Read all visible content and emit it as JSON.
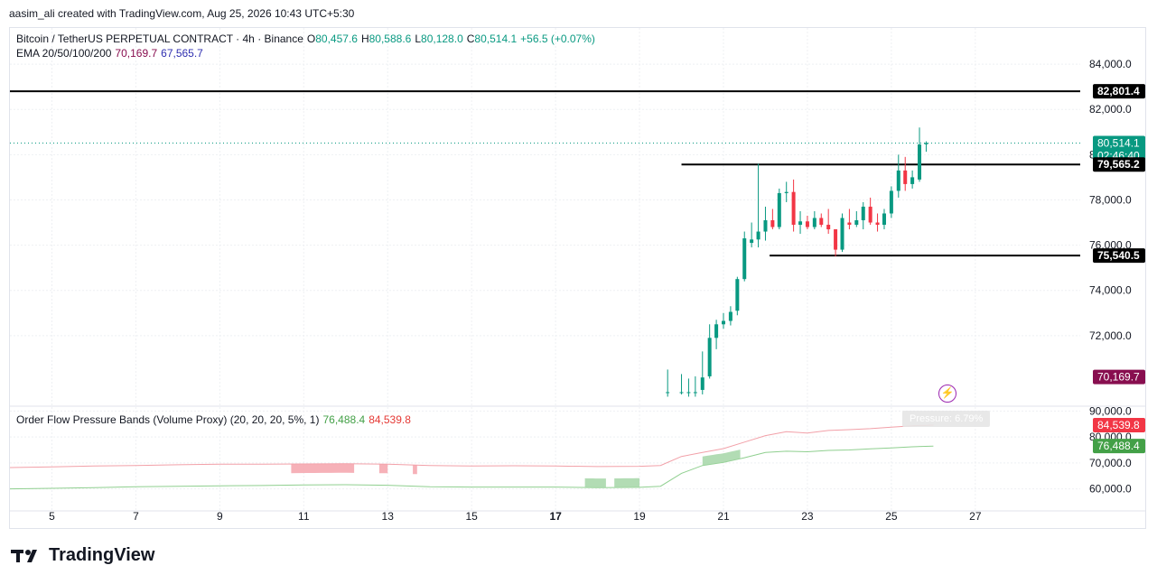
{
  "header": {
    "created_line": "aasim_ali created with TradingView.com, Aug 25, 2026 10:43 UTC+5:30"
  },
  "legend": {
    "symbol": "Bitcoin / TetherUS PERPETUAL CONTRACT · 4h · Binance",
    "o_label": "O",
    "o_value": "80,457.6",
    "h_label": "H",
    "h_value": "80,588.6",
    "l_label": "L",
    "l_value": "80,128.0",
    "c_label": "C",
    "c_value": "80,514.1",
    "change": "+56.5 (+0.07%)",
    "ema_label": "EMA 20/50/100/200",
    "ema_v1": "70,169.7",
    "ema_v2": "67,565.7"
  },
  "indicator": {
    "label": "Order Flow Pressure Bands (Volume Proxy) (20, 20, 20, 5%, 1)",
    "v1": "76,488.4",
    "v2": "84,539.8",
    "pressure_label": "Pressure: 6.79%"
  },
  "brand": {
    "name": "TradingView"
  },
  "colors": {
    "up": "#089981",
    "down": "#f23645",
    "upper_band": "#f2a0a8",
    "lower_band": "#8fcf8f",
    "ema": "#880e4f"
  },
  "chart_data": {
    "type": "candlestick",
    "timeframe": "4h",
    "x_ticks": [
      "5",
      "7",
      "9",
      "11",
      "13",
      "15",
      "17",
      "19",
      "21",
      "23",
      "25",
      "27"
    ],
    "x_range": [
      4,
      29.5
    ],
    "price_axis": {
      "ticks": [
        "84,000.0",
        "82,000.0",
        "80,000.0",
        "78,000.0",
        "76,000.0",
        "74,000.0",
        "72,000.0"
      ],
      "tick_values": [
        84000,
        82000,
        80000,
        78000,
        76000,
        74000,
        72000
      ],
      "range": [
        69000,
        85600
      ]
    },
    "price_labels": [
      {
        "value": 82801.4,
        "text": "82,801.4",
        "style": "black"
      },
      {
        "value": 80514.1,
        "text": "80,514.1",
        "style": "teal",
        "sub": "02:46:40"
      },
      {
        "value": 79565.2,
        "text": "79,565.2",
        "style": "black"
      },
      {
        "value": 75540.5,
        "text": "75,540.5",
        "style": "black"
      },
      {
        "value": 70169.7,
        "text": "70,169.7",
        "style": "ema"
      }
    ],
    "horizontal_lines": [
      {
        "value": 82801.4,
        "from": 4,
        "to": 29.5
      },
      {
        "value": 79565.2,
        "from": 20.0,
        "to": 29.5
      },
      {
        "value": 75540.5,
        "from": 22.1,
        "to": 29.5
      }
    ],
    "last_price_line": 80514.1,
    "candles": [
      {
        "d": 19.67,
        "o": 69500,
        "h": 70500,
        "l": 69300,
        "c": 69500
      },
      {
        "d": 20.0,
        "o": 69500,
        "h": 70300,
        "l": 69400,
        "c": 69500
      },
      {
        "d": 20.17,
        "o": 69500,
        "h": 70100,
        "l": 69300,
        "c": 69500
      },
      {
        "d": 20.33,
        "o": 69500,
        "h": 70200,
        "l": 69300,
        "c": 69500
      },
      {
        "d": 20.5,
        "o": 69600,
        "h": 71300,
        "l": 69400,
        "c": 70150
      },
      {
        "d": 20.67,
        "o": 70200,
        "h": 72500,
        "l": 70100,
        "c": 71900
      },
      {
        "d": 20.83,
        "o": 71900,
        "h": 72700,
        "l": 71400,
        "c": 72500
      },
      {
        "d": 21.0,
        "o": 72500,
        "h": 73000,
        "l": 72300,
        "c": 72650
      },
      {
        "d": 21.17,
        "o": 72650,
        "h": 73300,
        "l": 72450,
        "c": 73050
      },
      {
        "d": 21.33,
        "o": 73100,
        "h": 74600,
        "l": 72900,
        "c": 74500
      },
      {
        "d": 21.5,
        "o": 74500,
        "h": 76600,
        "l": 74400,
        "c": 76300
      },
      {
        "d": 21.67,
        "o": 76100,
        "h": 77000,
        "l": 75900,
        "c": 76250
      },
      {
        "d": 21.83,
        "o": 76250,
        "h": 79600,
        "l": 75900,
        "c": 76600
      },
      {
        "d": 22.0,
        "o": 76600,
        "h": 77700,
        "l": 76200,
        "c": 77100
      },
      {
        "d": 22.17,
        "o": 77100,
        "h": 77600,
        "l": 76700,
        "c": 76800
      },
      {
        "d": 22.33,
        "o": 76800,
        "h": 78500,
        "l": 76700,
        "c": 78300
      },
      {
        "d": 22.5,
        "o": 78300,
        "h": 78800,
        "l": 77900,
        "c": 78350
      },
      {
        "d": 22.67,
        "o": 78350,
        "h": 78900,
        "l": 76600,
        "c": 76900
      },
      {
        "d": 22.83,
        "o": 76900,
        "h": 77500,
        "l": 76500,
        "c": 77050
      },
      {
        "d": 23.0,
        "o": 77050,
        "h": 77300,
        "l": 76700,
        "c": 76800
      },
      {
        "d": 23.17,
        "o": 76800,
        "h": 77500,
        "l": 76700,
        "c": 77200
      },
      {
        "d": 23.33,
        "o": 77200,
        "h": 77400,
        "l": 76800,
        "c": 76900
      },
      {
        "d": 23.5,
        "o": 76900,
        "h": 77600,
        "l": 76500,
        "c": 76700
      },
      {
        "d": 23.67,
        "o": 76700,
        "h": 76700,
        "l": 75500,
        "c": 75800
      },
      {
        "d": 23.83,
        "o": 75800,
        "h": 77400,
        "l": 75700,
        "c": 77200
      },
      {
        "d": 24.0,
        "o": 77000,
        "h": 77600,
        "l": 76700,
        "c": 76900
      },
      {
        "d": 24.17,
        "o": 76900,
        "h": 77500,
        "l": 76800,
        "c": 77100
      },
      {
        "d": 24.33,
        "o": 77100,
        "h": 77900,
        "l": 76700,
        "c": 77700
      },
      {
        "d": 24.5,
        "o": 77700,
        "h": 78100,
        "l": 76900,
        "c": 77000
      },
      {
        "d": 24.67,
        "o": 77000,
        "h": 77400,
        "l": 76600,
        "c": 76900
      },
      {
        "d": 24.83,
        "o": 76900,
        "h": 77600,
        "l": 76700,
        "c": 77400
      },
      {
        "d": 25.0,
        "o": 77400,
        "h": 78600,
        "l": 77200,
        "c": 78400
      },
      {
        "d": 25.17,
        "o": 78400,
        "h": 80000,
        "l": 78100,
        "c": 79300
      },
      {
        "d": 25.33,
        "o": 79300,
        "h": 79900,
        "l": 78400,
        "c": 78700
      },
      {
        "d": 25.5,
        "o": 78700,
        "h": 79300,
        "l": 78500,
        "c": 79000
      },
      {
        "d": 25.67,
        "o": 78900,
        "h": 81200,
        "l": 78800,
        "c": 80450
      },
      {
        "d": 25.83,
        "o": 80457.6,
        "h": 80588.6,
        "l": 80128.0,
        "c": 80514.1
      }
    ],
    "indicator_pane": {
      "ticks": [
        "90,000.0",
        "80,000.0",
        "70,000.0",
        "60,000.0"
      ],
      "tick_values": [
        90000,
        80000,
        70000,
        60000
      ],
      "range": [
        55000,
        91500
      ],
      "labels": [
        {
          "value": 84539.8,
          "text": "84,539.8",
          "style": "red"
        },
        {
          "value": 76488.4,
          "text": "76,488.4",
          "style": "green"
        }
      ],
      "upper_band": [
        [
          4,
          68200
        ],
        [
          5,
          68500
        ],
        [
          6,
          68800
        ],
        [
          7,
          69000
        ],
        [
          8,
          69300
        ],
        [
          9,
          69500
        ],
        [
          10,
          69500
        ],
        [
          11,
          69600
        ],
        [
          12,
          69700
        ],
        [
          13,
          69500
        ],
        [
          14,
          69000
        ],
        [
          15,
          68800
        ],
        [
          16,
          68900
        ],
        [
          17,
          68800
        ],
        [
          18,
          68600
        ],
        [
          19,
          68700
        ],
        [
          19.5,
          69000
        ],
        [
          20,
          72500
        ],
        [
          20.5,
          74000
        ],
        [
          21,
          75500
        ],
        [
          21.5,
          78000
        ],
        [
          22,
          80500
        ],
        [
          22.5,
          82000
        ],
        [
          23,
          81500
        ],
        [
          23.5,
          82500
        ],
        [
          24,
          82800
        ],
        [
          24.5,
          83200
        ],
        [
          25,
          83800
        ],
        [
          25.5,
          84300
        ],
        [
          26,
          84539.8
        ]
      ],
      "lower_band": [
        [
          4,
          60000
        ],
        [
          5,
          60200
        ],
        [
          6,
          60500
        ],
        [
          7,
          60800
        ],
        [
          8,
          61000
        ],
        [
          9,
          61200
        ],
        [
          10,
          61300
        ],
        [
          11,
          61500
        ],
        [
          12,
          61600
        ],
        [
          13,
          61400
        ],
        [
          14,
          60800
        ],
        [
          15,
          60700
        ],
        [
          16,
          60700
        ],
        [
          17,
          60700
        ],
        [
          18,
          60500
        ],
        [
          19,
          60600
        ],
        [
          19.5,
          61000
        ],
        [
          20,
          66000
        ],
        [
          20.5,
          69000
        ],
        [
          21,
          70200
        ],
        [
          21.5,
          72000
        ],
        [
          22,
          74000
        ],
        [
          22.5,
          74500
        ],
        [
          23,
          74300
        ],
        [
          23.5,
          74800
        ],
        [
          24,
          75000
        ],
        [
          24.5,
          75400
        ],
        [
          25,
          75800
        ],
        [
          25.5,
          76200
        ],
        [
          26,
          76488.4
        ]
      ],
      "pressure_blocks": [
        {
          "from": 10.7,
          "to": 12.2,
          "side": "sell"
        },
        {
          "from": 12.8,
          "to": 13.0,
          "side": "sell"
        },
        {
          "from": 13.6,
          "to": 13.7,
          "side": "sell"
        },
        {
          "from": 17.7,
          "to": 18.2,
          "side": "buy"
        },
        {
          "from": 18.4,
          "to": 19.0,
          "side": "buy"
        },
        {
          "from": 20.5,
          "to": 21.4,
          "side": "buy"
        }
      ]
    }
  }
}
